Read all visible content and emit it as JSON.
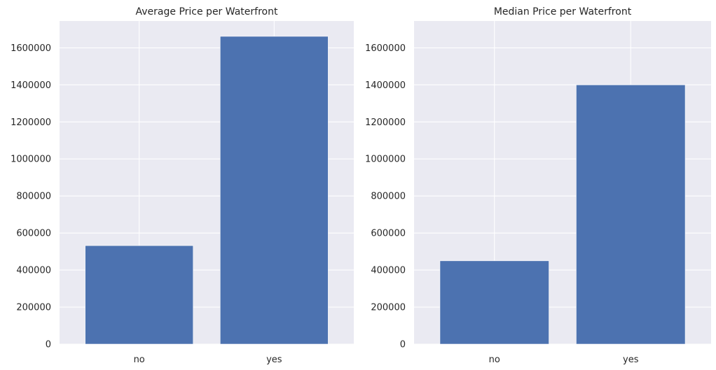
{
  "colors": {
    "bar": "#4c72b0",
    "plot_background": "#eaeaf2",
    "grid": "#ffffff",
    "text": "#262626"
  },
  "chart_data": [
    {
      "type": "bar",
      "title": "Average Price per Waterfront",
      "xlabel": "",
      "ylabel": "",
      "categories": [
        "no",
        "yes"
      ],
      "values": [
        532000,
        1662000
      ],
      "ylim": [
        0,
        1745000
      ],
      "yticks": [
        0,
        200000,
        400000,
        600000,
        800000,
        1000000,
        1200000,
        1400000,
        1600000
      ],
      "ytick_labels": [
        "0",
        "200000",
        "400000",
        "600000",
        "800000",
        "1000000",
        "1200000",
        "1400000",
        "1600000"
      ],
      "grid": true,
      "legend": "none"
    },
    {
      "type": "bar",
      "title": "Median Price per Waterfront",
      "xlabel": "",
      "ylabel": "",
      "categories": [
        "no",
        "yes"
      ],
      "values": [
        450000,
        1400000
      ],
      "ylim": [
        0,
        1745000
      ],
      "yticks": [
        0,
        200000,
        400000,
        600000,
        800000,
        1000000,
        1200000,
        1400000,
        1600000
      ],
      "ytick_labels": [
        "0",
        "200000",
        "400000",
        "600000",
        "800000",
        "1000000",
        "1200000",
        "1400000",
        "1600000"
      ],
      "grid": true,
      "legend": "none"
    }
  ]
}
